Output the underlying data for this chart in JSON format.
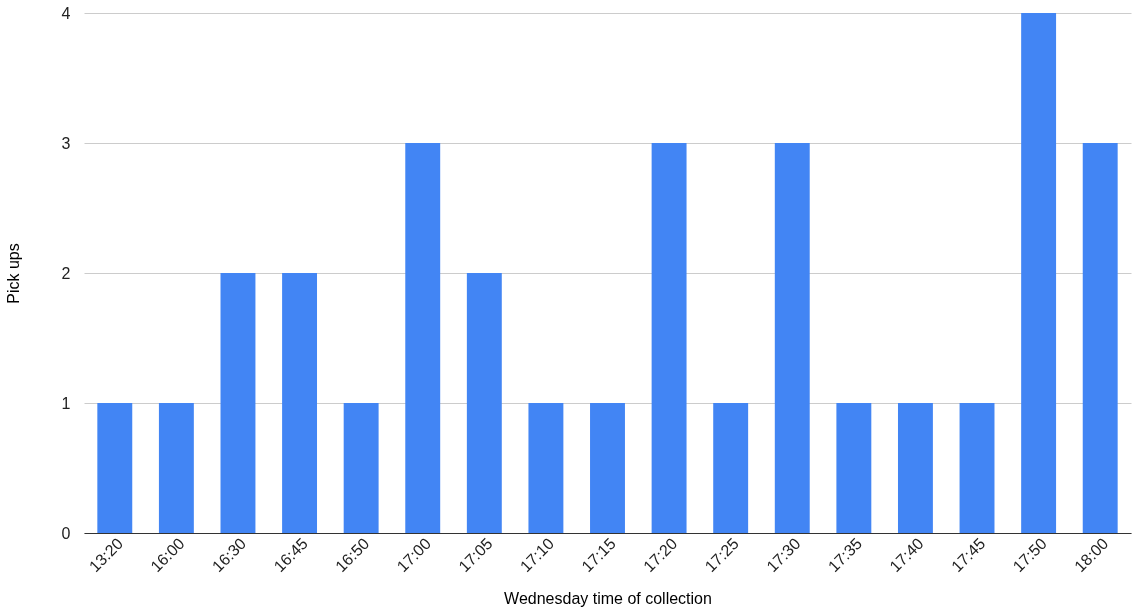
{
  "chart_data": {
    "type": "bar",
    "xlabel": "Wednesday time of collection",
    "ylabel": "Pick ups",
    "categories": [
      "13:20",
      "16:00",
      "16:30",
      "16:45",
      "16:50",
      "17:00",
      "17:05",
      "17:10",
      "17:15",
      "17:20",
      "17:25",
      "17:30",
      "17:35",
      "17:40",
      "17:45",
      "17:50",
      "18:00"
    ],
    "values": [
      1,
      1,
      2,
      2,
      1,
      3,
      2,
      1,
      1,
      3,
      1,
      3,
      1,
      1,
      1,
      4,
      3
    ],
    "color": "#4285f4",
    "ylim": [
      0,
      4
    ],
    "yticks": [
      0,
      1,
      2,
      3,
      4
    ],
    "grid": "y"
  }
}
